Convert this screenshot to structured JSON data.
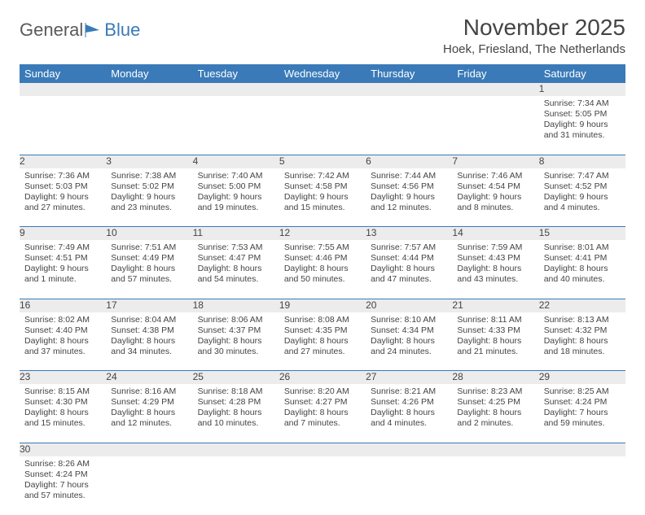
{
  "logo": {
    "part1": "General",
    "part2": "Blue"
  },
  "title": "November 2025",
  "location": "Hoek, Friesland, The Netherlands",
  "day_headers": [
    "Sunday",
    "Monday",
    "Tuesday",
    "Wednesday",
    "Thursday",
    "Friday",
    "Saturday"
  ],
  "colors": {
    "header_bg": "#3a7ab8",
    "header_text": "#ffffff",
    "daynum_bg": "#ececec",
    "separator": "#3a7ab8",
    "text": "#444444"
  },
  "weeks": [
    [
      null,
      null,
      null,
      null,
      null,
      null,
      {
        "num": "1",
        "sunrise": "Sunrise: 7:34 AM",
        "sunset": "Sunset: 5:05 PM",
        "daylight1": "Daylight: 9 hours",
        "daylight2": "and 31 minutes."
      }
    ],
    [
      {
        "num": "2",
        "sunrise": "Sunrise: 7:36 AM",
        "sunset": "Sunset: 5:03 PM",
        "daylight1": "Daylight: 9 hours",
        "daylight2": "and 27 minutes."
      },
      {
        "num": "3",
        "sunrise": "Sunrise: 7:38 AM",
        "sunset": "Sunset: 5:02 PM",
        "daylight1": "Daylight: 9 hours",
        "daylight2": "and 23 minutes."
      },
      {
        "num": "4",
        "sunrise": "Sunrise: 7:40 AM",
        "sunset": "Sunset: 5:00 PM",
        "daylight1": "Daylight: 9 hours",
        "daylight2": "and 19 minutes."
      },
      {
        "num": "5",
        "sunrise": "Sunrise: 7:42 AM",
        "sunset": "Sunset: 4:58 PM",
        "daylight1": "Daylight: 9 hours",
        "daylight2": "and 15 minutes."
      },
      {
        "num": "6",
        "sunrise": "Sunrise: 7:44 AM",
        "sunset": "Sunset: 4:56 PM",
        "daylight1": "Daylight: 9 hours",
        "daylight2": "and 12 minutes."
      },
      {
        "num": "7",
        "sunrise": "Sunrise: 7:46 AM",
        "sunset": "Sunset: 4:54 PM",
        "daylight1": "Daylight: 9 hours",
        "daylight2": "and 8 minutes."
      },
      {
        "num": "8",
        "sunrise": "Sunrise: 7:47 AM",
        "sunset": "Sunset: 4:52 PM",
        "daylight1": "Daylight: 9 hours",
        "daylight2": "and 4 minutes."
      }
    ],
    [
      {
        "num": "9",
        "sunrise": "Sunrise: 7:49 AM",
        "sunset": "Sunset: 4:51 PM",
        "daylight1": "Daylight: 9 hours",
        "daylight2": "and 1 minute."
      },
      {
        "num": "10",
        "sunrise": "Sunrise: 7:51 AM",
        "sunset": "Sunset: 4:49 PM",
        "daylight1": "Daylight: 8 hours",
        "daylight2": "and 57 minutes."
      },
      {
        "num": "11",
        "sunrise": "Sunrise: 7:53 AM",
        "sunset": "Sunset: 4:47 PM",
        "daylight1": "Daylight: 8 hours",
        "daylight2": "and 54 minutes."
      },
      {
        "num": "12",
        "sunrise": "Sunrise: 7:55 AM",
        "sunset": "Sunset: 4:46 PM",
        "daylight1": "Daylight: 8 hours",
        "daylight2": "and 50 minutes."
      },
      {
        "num": "13",
        "sunrise": "Sunrise: 7:57 AM",
        "sunset": "Sunset: 4:44 PM",
        "daylight1": "Daylight: 8 hours",
        "daylight2": "and 47 minutes."
      },
      {
        "num": "14",
        "sunrise": "Sunrise: 7:59 AM",
        "sunset": "Sunset: 4:43 PM",
        "daylight1": "Daylight: 8 hours",
        "daylight2": "and 43 minutes."
      },
      {
        "num": "15",
        "sunrise": "Sunrise: 8:01 AM",
        "sunset": "Sunset: 4:41 PM",
        "daylight1": "Daylight: 8 hours",
        "daylight2": "and 40 minutes."
      }
    ],
    [
      {
        "num": "16",
        "sunrise": "Sunrise: 8:02 AM",
        "sunset": "Sunset: 4:40 PM",
        "daylight1": "Daylight: 8 hours",
        "daylight2": "and 37 minutes."
      },
      {
        "num": "17",
        "sunrise": "Sunrise: 8:04 AM",
        "sunset": "Sunset: 4:38 PM",
        "daylight1": "Daylight: 8 hours",
        "daylight2": "and 34 minutes."
      },
      {
        "num": "18",
        "sunrise": "Sunrise: 8:06 AM",
        "sunset": "Sunset: 4:37 PM",
        "daylight1": "Daylight: 8 hours",
        "daylight2": "and 30 minutes."
      },
      {
        "num": "19",
        "sunrise": "Sunrise: 8:08 AM",
        "sunset": "Sunset: 4:35 PM",
        "daylight1": "Daylight: 8 hours",
        "daylight2": "and 27 minutes."
      },
      {
        "num": "20",
        "sunrise": "Sunrise: 8:10 AM",
        "sunset": "Sunset: 4:34 PM",
        "daylight1": "Daylight: 8 hours",
        "daylight2": "and 24 minutes."
      },
      {
        "num": "21",
        "sunrise": "Sunrise: 8:11 AM",
        "sunset": "Sunset: 4:33 PM",
        "daylight1": "Daylight: 8 hours",
        "daylight2": "and 21 minutes."
      },
      {
        "num": "22",
        "sunrise": "Sunrise: 8:13 AM",
        "sunset": "Sunset: 4:32 PM",
        "daylight1": "Daylight: 8 hours",
        "daylight2": "and 18 minutes."
      }
    ],
    [
      {
        "num": "23",
        "sunrise": "Sunrise: 8:15 AM",
        "sunset": "Sunset: 4:30 PM",
        "daylight1": "Daylight: 8 hours",
        "daylight2": "and 15 minutes."
      },
      {
        "num": "24",
        "sunrise": "Sunrise: 8:16 AM",
        "sunset": "Sunset: 4:29 PM",
        "daylight1": "Daylight: 8 hours",
        "daylight2": "and 12 minutes."
      },
      {
        "num": "25",
        "sunrise": "Sunrise: 8:18 AM",
        "sunset": "Sunset: 4:28 PM",
        "daylight1": "Daylight: 8 hours",
        "daylight2": "and 10 minutes."
      },
      {
        "num": "26",
        "sunrise": "Sunrise: 8:20 AM",
        "sunset": "Sunset: 4:27 PM",
        "daylight1": "Daylight: 8 hours",
        "daylight2": "and 7 minutes."
      },
      {
        "num": "27",
        "sunrise": "Sunrise: 8:21 AM",
        "sunset": "Sunset: 4:26 PM",
        "daylight1": "Daylight: 8 hours",
        "daylight2": "and 4 minutes."
      },
      {
        "num": "28",
        "sunrise": "Sunrise: 8:23 AM",
        "sunset": "Sunset: 4:25 PM",
        "daylight1": "Daylight: 8 hours",
        "daylight2": "and 2 minutes."
      },
      {
        "num": "29",
        "sunrise": "Sunrise: 8:25 AM",
        "sunset": "Sunset: 4:24 PM",
        "daylight1": "Daylight: 7 hours",
        "daylight2": "and 59 minutes."
      }
    ],
    [
      {
        "num": "30",
        "sunrise": "Sunrise: 8:26 AM",
        "sunset": "Sunset: 4:24 PM",
        "daylight1": "Daylight: 7 hours",
        "daylight2": "and 57 minutes."
      },
      null,
      null,
      null,
      null,
      null,
      null
    ]
  ]
}
